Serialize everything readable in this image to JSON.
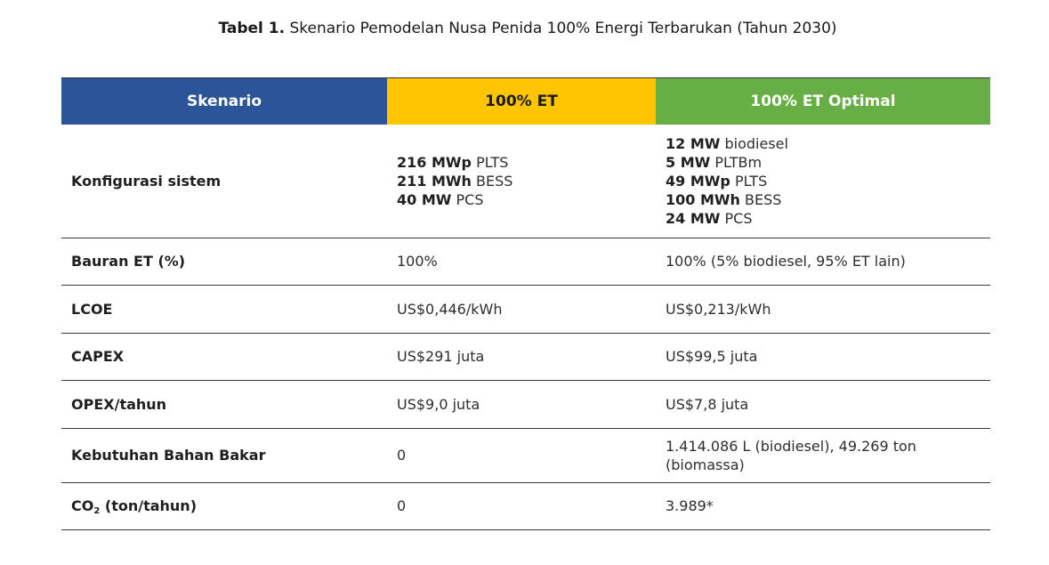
{
  "caption": {
    "prefix": "Tabel 1.",
    "text": " Skenario Pemodelan Nusa Penida 100% Energi Terbarukan (Tahun 2030)"
  },
  "table": {
    "headers": [
      "Skenario",
      "100% ET",
      "100% ET Optimal"
    ],
    "header_colors": [
      "#2c5597",
      "#ffc500",
      "#67ae45"
    ],
    "config": {
      "label": "Konfigurasi sistem",
      "et": [
        {
          "value": "216 MWp",
          "unit": " PLTS"
        },
        {
          "value": "211 MWh",
          "unit": " BESS"
        },
        {
          "value": "40 MW",
          "unit": " PCS"
        }
      ],
      "optimal": [
        {
          "value": "12 MW",
          "unit": " biodiesel"
        },
        {
          "value": "5 MW",
          "unit": " PLTBm"
        },
        {
          "value": "49 MWp",
          "unit": " PLTS"
        },
        {
          "value": "100 MWh",
          "unit": " BESS"
        },
        {
          "value": "24 MW",
          "unit": " PCS"
        }
      ]
    },
    "rows": [
      {
        "label": "Bauran ET (%)",
        "et": "100%",
        "optimal": "100% (5% biodiesel, 95% ET lain)"
      },
      {
        "label": "LCOE",
        "et": "US$0,446/kWh",
        "optimal": "US$0,213/kWh"
      },
      {
        "label": "CAPEX",
        "et": "US$291 juta",
        "optimal": "US$99,5 juta"
      },
      {
        "label": "OPEX/tahun",
        "et": "US$9,0 juta",
        "optimal": "US$7,8 juta"
      },
      {
        "label": "Kebutuhan Bahan Bakar",
        "et": "0",
        "optimal_line1": "1.414.086 L (biodiesel), 49.269 ton",
        "optimal_line2": "(biomassa)"
      }
    ],
    "co2": {
      "label_main": "CO",
      "label_sub": "2",
      "label_rest": " (ton/tahun)",
      "et": "0",
      "optimal": "3.989*"
    }
  }
}
